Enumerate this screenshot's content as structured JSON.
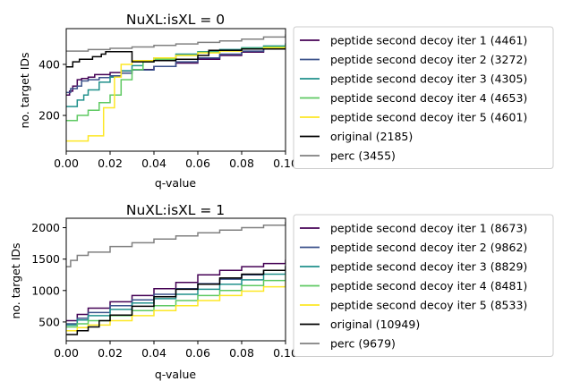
{
  "chart_data": [
    {
      "type": "line",
      "step": true,
      "title": "NuXL:isXL = 0",
      "xlabel": "q-value",
      "ylabel": "no. target IDs",
      "xlim": [
        0,
        0.1
      ],
      "ylim": [
        60,
        540
      ],
      "xticks": [
        "0.00",
        "0.02",
        "0.04",
        "0.06",
        "0.08",
        "0.10"
      ],
      "yticks": [
        200,
        400
      ],
      "grid": false,
      "legend_position": "right, outside",
      "series": [
        {
          "name": "peptide second decoy iter 1 (4461)",
          "color": "#440154",
          "x": [
            0,
            0.0015,
            0.003,
            0.005,
            0.007,
            0.01,
            0.013,
            0.02,
            0.025,
            0.03,
            0.04,
            0.05,
            0.06,
            0.07,
            0.08,
            0.09,
            0.1
          ],
          "y": [
            280,
            295,
            315,
            340,
            345,
            350,
            360,
            368,
            374,
            380,
            392,
            405,
            420,
            435,
            448,
            460,
            468
          ]
        },
        {
          "name": "peptide second decoy iter 2 (3272)",
          "color": "#3b528b",
          "x": [
            0,
            0.002,
            0.005,
            0.007,
            0.01,
            0.015,
            0.02,
            0.025,
            0.03,
            0.04,
            0.05,
            0.06,
            0.07,
            0.08,
            0.09,
            0.1
          ],
          "y": [
            290,
            305,
            315,
            335,
            340,
            348,
            355,
            365,
            378,
            392,
            410,
            425,
            440,
            452,
            462,
            470
          ]
        },
        {
          "name": "peptide second decoy iter 3 (4305)",
          "color": "#21918c",
          "x": [
            0,
            0.005,
            0.008,
            0.01,
            0.015,
            0.02,
            0.025,
            0.03,
            0.035,
            0.04,
            0.05,
            0.06,
            0.07,
            0.08,
            0.09,
            0.1
          ],
          "y": [
            235,
            260,
            280,
            300,
            330,
            350,
            375,
            395,
            415,
            425,
            440,
            450,
            458,
            465,
            472,
            480
          ]
        },
        {
          "name": "peptide second decoy iter 4 (4653)",
          "color": "#5ec962",
          "x": [
            0,
            0.005,
            0.01,
            0.015,
            0.02,
            0.025,
            0.03,
            0.035,
            0.04,
            0.05,
            0.06,
            0.07,
            0.08,
            0.09,
            0.1
          ],
          "y": [
            180,
            200,
            220,
            250,
            280,
            340,
            380,
            410,
            420,
            435,
            447,
            455,
            462,
            468,
            475
          ]
        },
        {
          "name": "peptide second decoy iter 5 (4601)",
          "color": "#fde725",
          "x": [
            0,
            0.01,
            0.017,
            0.022,
            0.025,
            0.03,
            0.04,
            0.05,
            0.06,
            0.07,
            0.08,
            0.09,
            0.1
          ],
          "y": [
            100,
            120,
            230,
            350,
            400,
            415,
            425,
            435,
            445,
            452,
            460,
            465,
            470
          ]
        },
        {
          "name": "original (2185)",
          "color": "#000000",
          "x": [
            0,
            0.003,
            0.006,
            0.008,
            0.012,
            0.016,
            0.018,
            0.022,
            0.03,
            0.04,
            0.05,
            0.06,
            0.065,
            0.07,
            0.08,
            0.09,
            0.1
          ],
          "y": [
            390,
            410,
            420,
            420,
            430,
            440,
            450,
            450,
            410,
            415,
            420,
            435,
            455,
            455,
            460,
            460,
            460
          ]
        },
        {
          "name": "perc (3455)",
          "color": "#808080",
          "x": [
            0,
            0.01,
            0.02,
            0.03,
            0.04,
            0.05,
            0.06,
            0.07,
            0.08,
            0.09,
            0.1
          ],
          "y": [
            452,
            458,
            463,
            468,
            474,
            480,
            486,
            492,
            499,
            507,
            515
          ]
        }
      ]
    },
    {
      "type": "line",
      "step": true,
      "title": "NuXL:isXL = 1",
      "xlabel": "q-value",
      "ylabel": "no. target IDs",
      "xlim": [
        0,
        0.1
      ],
      "ylim": [
        200,
        2150
      ],
      "xticks": [
        "0.00",
        "0.02",
        "0.04",
        "0.06",
        "0.08",
        "0.10"
      ],
      "yticks": [
        500,
        1000,
        1500,
        2000
      ],
      "grid": false,
      "legend_position": "right, outside",
      "series": [
        {
          "name": "peptide second decoy iter 1 (8673)",
          "color": "#440154",
          "x": [
            0,
            0.005,
            0.01,
            0.02,
            0.03,
            0.04,
            0.05,
            0.06,
            0.07,
            0.08,
            0.09,
            0.1
          ],
          "y": [
            520,
            620,
            720,
            820,
            920,
            1030,
            1130,
            1250,
            1320,
            1380,
            1430,
            1480
          ]
        },
        {
          "name": "peptide second decoy iter 2 (9862)",
          "color": "#3b528b",
          "x": [
            0,
            0.005,
            0.01,
            0.02,
            0.03,
            0.04,
            0.05,
            0.06,
            0.07,
            0.08,
            0.09,
            0.1
          ],
          "y": [
            470,
            560,
            650,
            760,
            850,
            940,
            1030,
            1110,
            1180,
            1250,
            1320,
            1390
          ]
        },
        {
          "name": "peptide second decoy iter 3 (8829)",
          "color": "#21918c",
          "x": [
            0,
            0.005,
            0.01,
            0.02,
            0.03,
            0.04,
            0.05,
            0.06,
            0.07,
            0.08,
            0.09,
            0.1
          ],
          "y": [
            450,
            530,
            600,
            700,
            800,
            870,
            940,
            1020,
            1100,
            1170,
            1260,
            1340
          ]
        },
        {
          "name": "peptide second decoy iter 4 (8481)",
          "color": "#5ec962",
          "x": [
            0,
            0.005,
            0.01,
            0.02,
            0.03,
            0.04,
            0.05,
            0.06,
            0.07,
            0.08,
            0.09,
            0.1
          ],
          "y": [
            420,
            470,
            520,
            600,
            680,
            760,
            840,
            920,
            1000,
            1080,
            1160,
            1240
          ]
        },
        {
          "name": "peptide second decoy iter 5 (8533)",
          "color": "#fde725",
          "x": [
            0,
            0.005,
            0.01,
            0.02,
            0.03,
            0.04,
            0.05,
            0.06,
            0.07,
            0.08,
            0.09,
            0.1
          ],
          "y": [
            360,
            410,
            450,
            520,
            600,
            680,
            760,
            840,
            920,
            990,
            1060,
            1140
          ]
        },
        {
          "name": "original (10949)",
          "color": "#000000",
          "x": [
            0,
            0.005,
            0.01,
            0.015,
            0.02,
            0.03,
            0.04,
            0.05,
            0.06,
            0.07,
            0.08,
            0.09,
            0.1
          ],
          "y": [
            300,
            360,
            420,
            520,
            610,
            750,
            900,
            1020,
            1100,
            1200,
            1260,
            1320,
            1380
          ]
        },
        {
          "name": "perc (9679)",
          "color": "#808080",
          "x": [
            0,
            0.002,
            0.005,
            0.01,
            0.02,
            0.03,
            0.04,
            0.05,
            0.06,
            0.07,
            0.08,
            0.09,
            0.1
          ],
          "y": [
            1380,
            1480,
            1560,
            1610,
            1700,
            1760,
            1820,
            1870,
            1920,
            1960,
            2000,
            2040,
            2080
          ]
        }
      ]
    }
  ]
}
